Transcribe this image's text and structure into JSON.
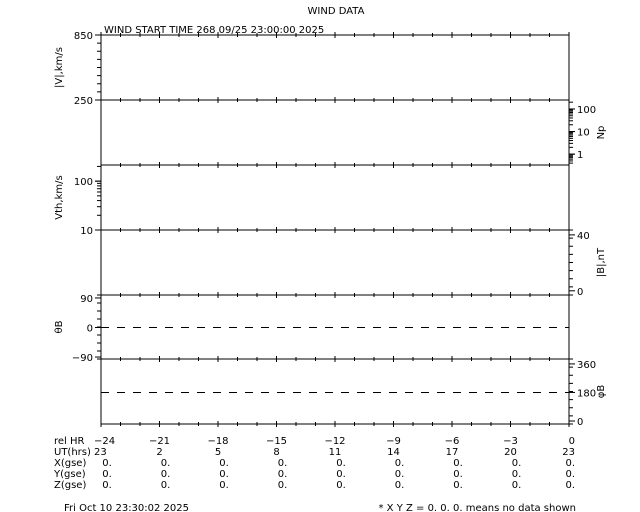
{
  "title": "WIND DATA",
  "subtitle": "WIND START TIME 268 09/25 23:00:00 2025",
  "chart_data": {
    "type": "line",
    "grid": false,
    "xlim": [
      -24,
      0
    ],
    "x_ticks": [
      -24,
      -21,
      -18,
      -15,
      -12,
      -9,
      -6,
      -3,
      0
    ],
    "panels": [
      {
        "ylabel": "|V|,km/s",
        "label_side": "left",
        "scale": "linear",
        "ylim": [
          250,
          850
        ],
        "tick_labels": [
          {
            "v": 850,
            "t": "850"
          },
          {
            "v": 250,
            "t": "250"
          }
        ],
        "series": []
      },
      {
        "ylabel": "Np",
        "label_side": "right",
        "scale": "log",
        "ylim": [
          0.33,
          250
        ],
        "tick_labels": [
          {
            "v": 100,
            "t": "100"
          },
          {
            "v": 10,
            "t": "10"
          },
          {
            "v": 1,
            "t": "1"
          }
        ],
        "series": []
      },
      {
        "ylabel": "Vth,km/s",
        "label_side": "left",
        "scale": "log",
        "ylim": [
          10,
          214
        ],
        "tick_labels": [
          {
            "v": 100,
            "t": "100"
          },
          {
            "v": 10,
            "t": "10"
          }
        ],
        "series": []
      },
      {
        "ylabel": "|B|,nT",
        "label_side": "right",
        "scale": "linear",
        "ylim": [
          -3,
          43.5
        ],
        "tick_labels": [
          {
            "v": 40,
            "t": "40"
          },
          {
            "v": 0,
            "t": "0"
          }
        ],
        "series": []
      },
      {
        "ylabel": "θB",
        "label_side": "left",
        "scale": "linear",
        "ylim": [
          -96,
          99
        ],
        "tick_labels": [
          {
            "v": 90,
            "t": "90"
          },
          {
            "v": 0,
            "t": "0"
          },
          {
            "v": -90,
            "t": "−90"
          }
        ],
        "reference_line": 0,
        "series": []
      },
      {
        "ylabel": "φB",
        "label_side": "right",
        "scale": "linear",
        "ylim": [
          -19,
          391
        ],
        "tick_labels": [
          {
            "v": 360,
            "t": "360"
          },
          {
            "v": 180,
            "t": "180"
          },
          {
            "v": 0,
            "t": "0"
          }
        ],
        "reference_line": 180,
        "series": []
      }
    ]
  },
  "table": {
    "rows": [
      {
        "label": "rel HR",
        "values": [
          "−24",
          "−21",
          "−18",
          "−15",
          "−12",
          "−9",
          "−6",
          "−3",
          "0"
        ]
      },
      {
        "label": "UT(hrs)",
        "values": [
          "23",
          "2",
          "5",
          "8",
          "11",
          "14",
          "17",
          "20",
          "23"
        ]
      },
      {
        "label": "X(gse)",
        "values": [
          "0.",
          "0.",
          "0.",
          "0.",
          "0.",
          "0.",
          "0.",
          "0.",
          "0."
        ]
      },
      {
        "label": "Y(gse)",
        "values": [
          "0.",
          "0.",
          "0.",
          "0.",
          "0.",
          "0.",
          "0.",
          "0.",
          "0."
        ]
      },
      {
        "label": "Z(gse)",
        "values": [
          "0.",
          "0.",
          "0.",
          "0.",
          "0.",
          "0.",
          "0.",
          "0.",
          "0."
        ]
      }
    ]
  },
  "footer": {
    "timestamp": "Fri Oct 10 23:30:02 2025",
    "note": "* X Y Z = 0. 0. 0. means no data shown"
  }
}
